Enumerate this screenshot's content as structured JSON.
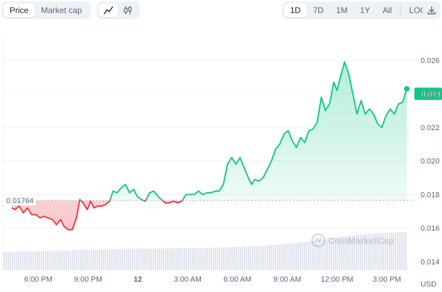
{
  "toolbar": {
    "metric_tabs": [
      {
        "label": "Price",
        "active": true
      },
      {
        "label": "Market cap",
        "active": false
      }
    ],
    "chart_type_buttons": [
      {
        "icon": "line-chart-icon",
        "active": true
      },
      {
        "icon": "candlestick-icon",
        "active": false
      }
    ],
    "range_tabs": [
      {
        "label": "1D",
        "active": true
      },
      {
        "label": "7D",
        "active": false
      },
      {
        "label": "1M",
        "active": false
      },
      {
        "label": "1Y",
        "active": false
      },
      {
        "label": "All",
        "active": false
      }
    ],
    "log_label": "LOG",
    "download_icon": "download-icon"
  },
  "chart_data": {
    "type": "line",
    "title": "",
    "xlabel": "",
    "ylabel": "",
    "currency_label": "USD",
    "x_tick_labels": [
      "6:00 PM",
      "9:00 PM",
      "12",
      "3:00 AM",
      "6:00 AM",
      "9:00 AM",
      "12:00 PM",
      "3:00 PM"
    ],
    "y_tick_labels": [
      "0.014",
      "0.016",
      "0.018",
      "0.020",
      "0.022",
      "0.024",
      "0.026"
    ],
    "ylim": [
      0.0135,
      0.0275
    ],
    "reference_price": 0.01764,
    "reference_price_label": "0.01764",
    "current_price": 0.024,
    "current_price_label": "0.024",
    "watermark": "CoinMarketCap",
    "grid": "horizontal",
    "series": [
      {
        "x_hours": [
          0,
          0.2,
          0.45,
          0.7,
          0.95,
          1.2,
          1.45,
          1.7,
          1.95,
          2.2,
          2.45,
          2.7,
          2.95,
          3.15,
          3.4,
          3.65,
          3.9,
          4.1,
          4.3,
          4.55,
          4.75,
          4.95,
          5.15,
          5.4,
          5.65,
          5.9,
          6.1,
          6.35,
          6.6,
          6.85,
          7.1,
          7.35,
          7.55,
          7.8,
          8.05,
          8.3,
          8.55,
          8.8,
          9.0,
          9.25,
          9.5,
          9.75,
          10.0,
          10.25,
          10.5,
          10.75,
          11.0,
          11.25,
          11.5,
          11.75,
          12.0,
          12.25,
          12.5,
          12.75,
          13.0,
          13.25,
          13.5,
          13.75,
          14.0,
          14.25,
          14.45,
          14.65,
          14.9,
          15.15,
          15.4,
          15.65,
          15.9,
          16.15,
          16.4,
          16.65,
          16.9,
          17.15,
          17.4,
          17.65,
          17.9,
          18.15,
          18.4,
          18.65,
          18.9,
          19.15,
          19.4,
          19.6,
          19.8,
          20.05,
          20.3,
          20.55,
          20.8,
          21.05,
          21.3,
          21.55,
          21.8,
          22.05,
          22.3,
          22.55,
          22.8,
          23.05,
          23.3,
          23.55,
          23.8
        ],
        "values": [
          0.0172,
          0.0171,
          0.0173,
          0.0169,
          0.0172,
          0.0168,
          0.0168,
          0.0166,
          0.0167,
          0.0166,
          0.0165,
          0.0162,
          0.0165,
          0.0161,
          0.0159,
          0.0159,
          0.0166,
          0.0177,
          0.0175,
          0.0171,
          0.0176,
          0.0172,
          0.0173,
          0.0173,
          0.0174,
          0.0176,
          0.0182,
          0.0181,
          0.0184,
          0.0186,
          0.0181,
          0.0183,
          0.0179,
          0.0177,
          0.0176,
          0.0181,
          0.0182,
          0.0179,
          0.0177,
          0.0175,
          0.0175,
          0.0176,
          0.0175,
          0.0176,
          0.018,
          0.018,
          0.018,
          0.0182,
          0.018,
          0.0181,
          0.0181,
          0.0182,
          0.0182,
          0.0186,
          0.0198,
          0.0202,
          0.0198,
          0.0202,
          0.0196,
          0.019,
          0.0186,
          0.0189,
          0.0188,
          0.019,
          0.0195,
          0.02,
          0.0207,
          0.021,
          0.0216,
          0.0218,
          0.0212,
          0.0208,
          0.0214,
          0.0211,
          0.0218,
          0.0219,
          0.0223,
          0.0238,
          0.023,
          0.0234,
          0.0247,
          0.0242,
          0.025,
          0.0259,
          0.0252,
          0.024,
          0.0228,
          0.0236,
          0.0228,
          0.0231,
          0.0228,
          0.0222,
          0.022,
          0.0227,
          0.0231,
          0.0228,
          0.0234,
          0.0235,
          0.0243
        ]
      }
    ],
    "volume_series": {
      "x_hours": [
        0,
        1,
        2,
        3,
        4,
        5,
        6,
        7,
        8,
        9,
        10,
        11,
        12,
        13,
        14,
        15,
        16,
        17,
        18,
        19,
        20,
        21,
        22,
        23,
        23.8
      ],
      "values": [
        44,
        45,
        46,
        47,
        48,
        49,
        50,
        51,
        52,
        52,
        53,
        53,
        54,
        55,
        56,
        58,
        61,
        65,
        70,
        76,
        81,
        86,
        89,
        91,
        92
      ]
    },
    "colors": {
      "up": "#16c784",
      "down": "#ea3943",
      "grid": "#eff2f5",
      "reference_line": "#a6b0c3",
      "volume": "#cfd6e4"
    }
  }
}
